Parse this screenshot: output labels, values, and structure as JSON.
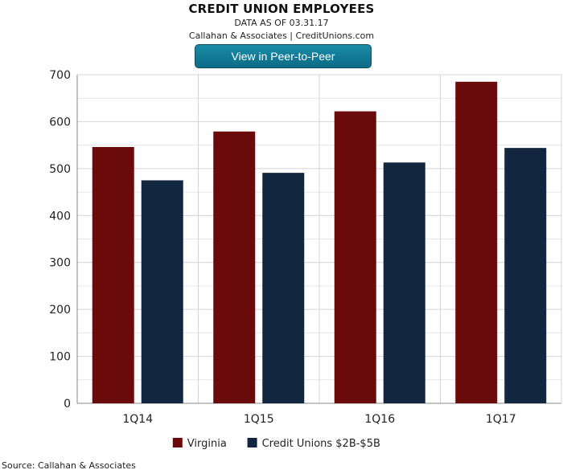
{
  "header": {
    "title": "CREDIT UNION EMPLOYEES",
    "subtitle_date": "DATA AS OF 03.31.17",
    "subtitle_source": "Callahan & Associates | CreditUnions.com"
  },
  "button": {
    "label": "View in Peer-to-Peer"
  },
  "footer": {
    "source": "Source: Callahan & Associates"
  },
  "chart_data": {
    "type": "bar",
    "title": "CREDIT UNION EMPLOYEES",
    "categories": [
      "1Q14",
      "1Q15",
      "1Q16",
      "1Q17"
    ],
    "series": [
      {
        "name": "Virginia",
        "color": "#6b0a0a",
        "values": [
          546,
          579,
          622,
          685
        ]
      },
      {
        "name": "Credit Unions $2B-$5B",
        "color": "#13263f",
        "values": [
          475,
          491,
          513,
          544
        ]
      }
    ],
    "xlabel": "",
    "ylabel": "",
    "ylim": [
      0,
      700
    ],
    "yticks": [
      0,
      100,
      200,
      300,
      400,
      500,
      600,
      700
    ],
    "grid": true,
    "legend_position": "bottom"
  }
}
